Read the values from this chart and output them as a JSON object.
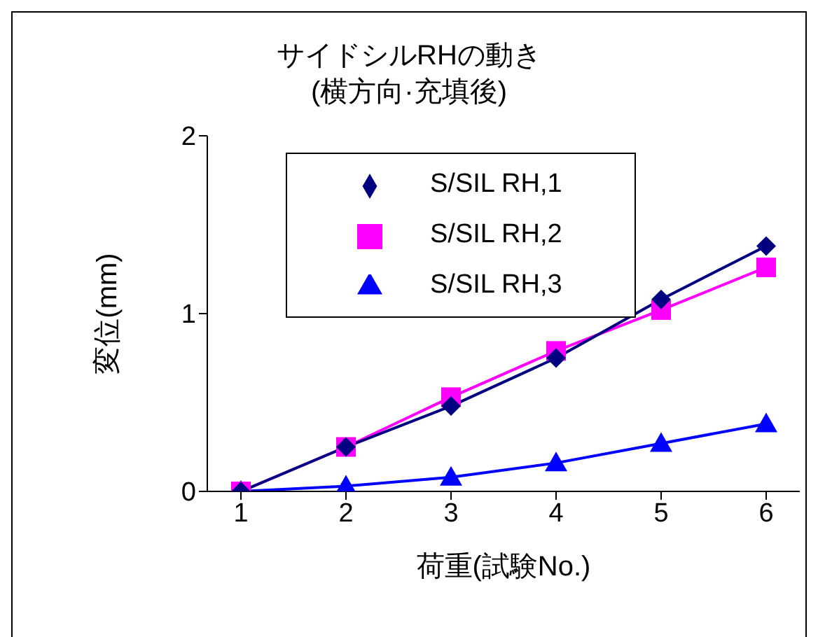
{
  "chart_data": {
    "type": "line",
    "title": "サイドシルRHの動き",
    "subtitle": "(横方向·充填後)",
    "xlabel": "荷重(試験No.)",
    "ylabel": "変位(mm)",
    "categories": [
      "1",
      "2",
      "3",
      "4",
      "5",
      "6"
    ],
    "series": [
      {
        "name": "S/SIL RH,1",
        "color": "#000080",
        "marker": "diamond",
        "values": [
          0,
          0.25,
          0.48,
          0.75,
          1.08,
          1.38
        ]
      },
      {
        "name": "S/SIL RH,2",
        "color": "#ff00ff",
        "marker": "square",
        "values": [
          0,
          0.25,
          0.53,
          0.79,
          1.02,
          1.26
        ]
      },
      {
        "name": "S/SIL RH,3",
        "color": "#0000ff",
        "marker": "triangle",
        "values": [
          0,
          0.03,
          0.08,
          0.16,
          0.27,
          0.38
        ]
      }
    ],
    "ylim": [
      0,
      2
    ],
    "yticks": [
      0,
      1,
      2
    ],
    "grid": false,
    "legend": "top"
  }
}
